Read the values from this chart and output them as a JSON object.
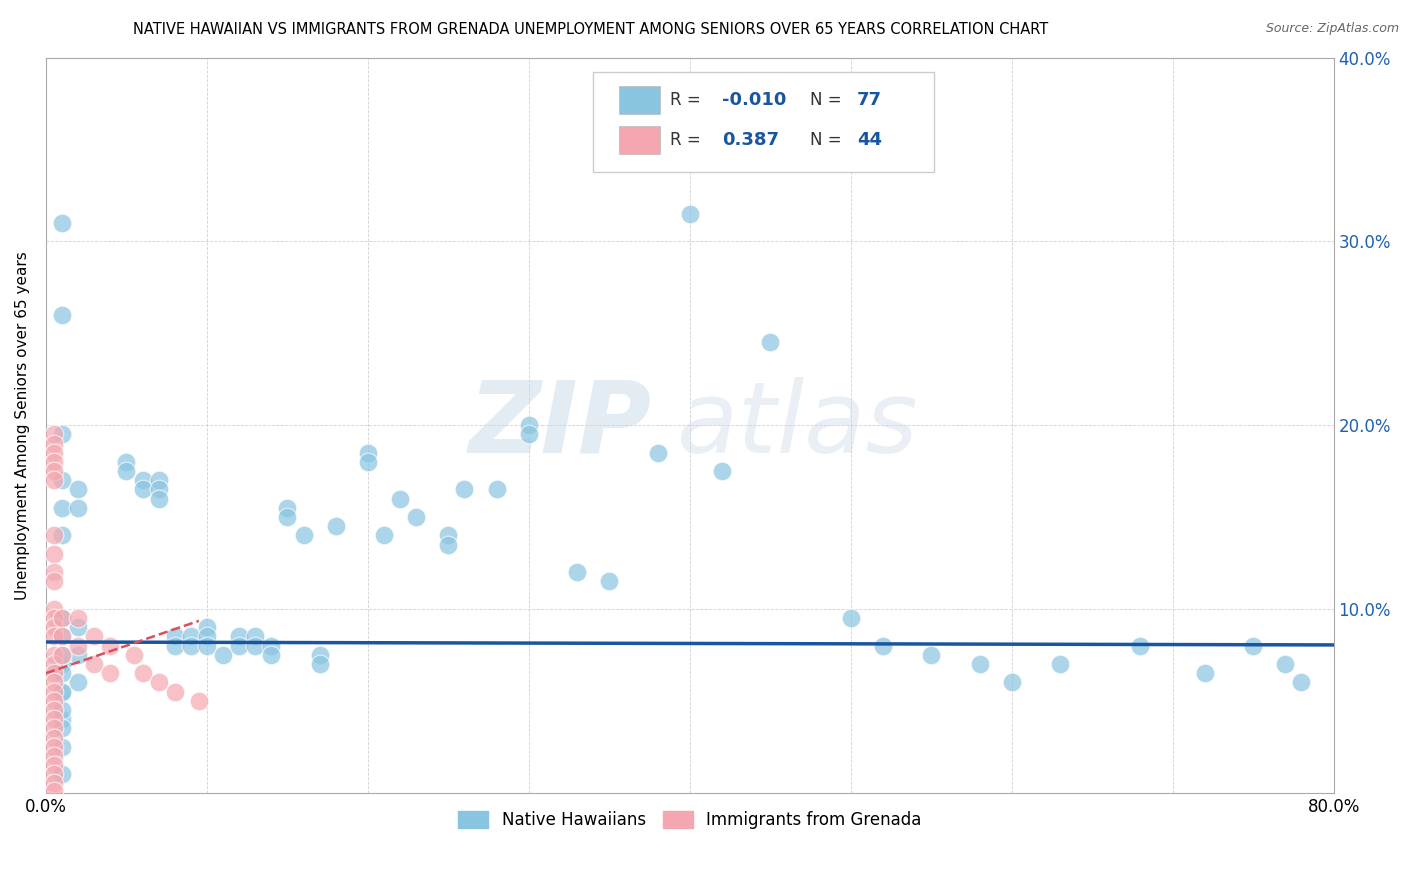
{
  "title": "NATIVE HAWAIIAN VS IMMIGRANTS FROM GRENADA UNEMPLOYMENT AMONG SENIORS OVER 65 YEARS CORRELATION CHART",
  "source_text": "Source: ZipAtlas.com",
  "ylabel": "Unemployment Among Seniors over 65 years",
  "xlim": [
    0.0,
    0.8
  ],
  "ylim": [
    0.0,
    0.4
  ],
  "xticks": [
    0.0,
    0.1,
    0.2,
    0.3,
    0.4,
    0.5,
    0.6,
    0.7,
    0.8
  ],
  "yticks": [
    0.0,
    0.1,
    0.2,
    0.3,
    0.4
  ],
  "R_blue": -0.01,
  "N_blue": 77,
  "R_pink": 0.387,
  "N_pink": 44,
  "blue_color": "#89c4e1",
  "pink_color": "#f4a7b0",
  "blue_line_color": "#1a56a0",
  "pink_line_color": "#d94f5c",
  "watermark_zip": "ZIP",
  "watermark_atlas": "atlas",
  "blue_scatter_x": [
    0.01,
    0.01,
    0.01,
    0.01,
    0.01,
    0.01,
    0.01,
    0.01,
    0.01,
    0.01,
    0.01,
    0.02,
    0.02,
    0.02,
    0.02,
    0.02,
    0.05,
    0.05,
    0.06,
    0.06,
    0.07,
    0.07,
    0.07,
    0.08,
    0.08,
    0.09,
    0.09,
    0.1,
    0.1,
    0.1,
    0.11,
    0.12,
    0.12,
    0.13,
    0.13,
    0.14,
    0.14,
    0.15,
    0.15,
    0.16,
    0.17,
    0.17,
    0.18,
    0.2,
    0.2,
    0.21,
    0.22,
    0.23,
    0.25,
    0.25,
    0.26,
    0.28,
    0.3,
    0.3,
    0.33,
    0.35,
    0.38,
    0.4,
    0.42,
    0.45,
    0.5,
    0.52,
    0.55,
    0.58,
    0.6,
    0.63,
    0.68,
    0.72,
    0.75,
    0.77,
    0.78,
    0.01,
    0.01,
    0.01,
    0.01,
    0.01,
    0.01,
    0.01
  ],
  "blue_scatter_y": [
    0.31,
    0.26,
    0.195,
    0.17,
    0.155,
    0.14,
    0.095,
    0.07,
    0.055,
    0.04,
    0.01,
    0.165,
    0.155,
    0.09,
    0.075,
    0.06,
    0.18,
    0.175,
    0.17,
    0.165,
    0.17,
    0.165,
    0.16,
    0.085,
    0.08,
    0.085,
    0.08,
    0.09,
    0.085,
    0.08,
    0.075,
    0.085,
    0.08,
    0.085,
    0.08,
    0.08,
    0.075,
    0.155,
    0.15,
    0.14,
    0.075,
    0.07,
    0.145,
    0.185,
    0.18,
    0.14,
    0.16,
    0.15,
    0.14,
    0.135,
    0.165,
    0.165,
    0.2,
    0.195,
    0.12,
    0.115,
    0.185,
    0.315,
    0.175,
    0.245,
    0.095,
    0.08,
    0.075,
    0.07,
    0.06,
    0.07,
    0.08,
    0.065,
    0.08,
    0.07,
    0.06,
    0.085,
    0.075,
    0.065,
    0.055,
    0.045,
    0.035,
    0.025
  ],
  "pink_scatter_x": [
    0.005,
    0.005,
    0.005,
    0.005,
    0.005,
    0.005,
    0.005,
    0.005,
    0.005,
    0.005,
    0.005,
    0.005,
    0.005,
    0.005,
    0.005,
    0.005,
    0.005,
    0.005,
    0.005,
    0.005,
    0.005,
    0.005,
    0.005,
    0.005,
    0.005,
    0.005,
    0.005,
    0.005,
    0.005,
    0.005,
    0.01,
    0.01,
    0.01,
    0.02,
    0.02,
    0.03,
    0.03,
    0.04,
    0.04,
    0.055,
    0.06,
    0.07,
    0.08,
    0.095
  ],
  "pink_scatter_y": [
    0.195,
    0.19,
    0.185,
    0.18,
    0.175,
    0.17,
    0.14,
    0.13,
    0.12,
    0.115,
    0.1,
    0.095,
    0.09,
    0.085,
    0.075,
    0.07,
    0.065,
    0.06,
    0.055,
    0.05,
    0.045,
    0.04,
    0.035,
    0.03,
    0.025,
    0.02,
    0.015,
    0.01,
    0.005,
    0.001,
    0.095,
    0.085,
    0.075,
    0.095,
    0.08,
    0.085,
    0.07,
    0.08,
    0.065,
    0.075,
    0.065,
    0.06,
    0.055,
    0.05
  ]
}
